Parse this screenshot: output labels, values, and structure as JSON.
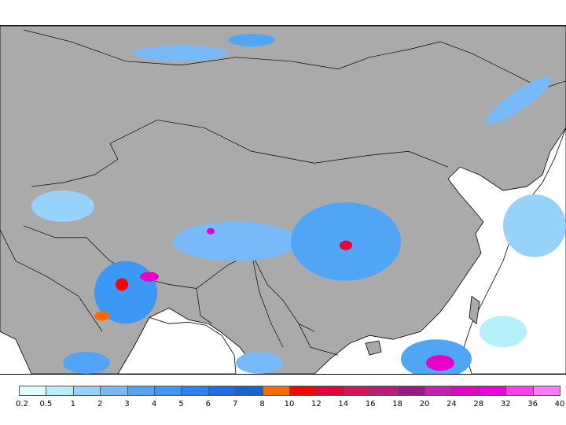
{
  "map": {
    "land_color": "#aaaaaa",
    "sea_color": "#ffffff",
    "border_color": "#000000"
  },
  "legend": {
    "colors": [
      "#e0ffff",
      "#b4f0fa",
      "#96d2fa",
      "#78b9fa",
      "#50a5f5",
      "#3c97f5",
      "#2882f0",
      "#1e6eeb",
      "#1464d2",
      "#ff6a00",
      "#ff0000",
      "#e6003c",
      "#d2145a",
      "#b91e78",
      "#a0148c",
      "#c81eb4",
      "#e600c8",
      "#f000dc",
      "#ff3cf0",
      "#ff78ff"
    ],
    "labels": [
      "0.2",
      "0.5",
      "1",
      "2",
      "3",
      "4",
      "5",
      "6",
      "7",
      "8",
      "10",
      "12",
      "14",
      "16",
      "18",
      "20",
      "24",
      "28",
      "32",
      "36",
      "40"
    ]
  }
}
